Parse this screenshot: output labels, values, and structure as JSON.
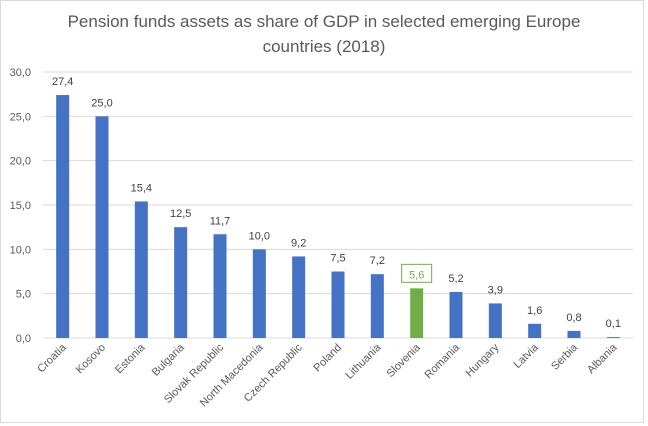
{
  "chart_data": {
    "type": "bar",
    "title": [
      "Pension funds assets as share of GDP in selected emerging Europe",
      "countries (2018)"
    ],
    "categories": [
      "Croatia",
      "Kosovo",
      "Estonia",
      "Bulgaria",
      "Slovak Republic",
      "North Macedonia",
      "Czech Republic",
      "Poland",
      "Lithuania",
      "Slovenia",
      "Romania",
      "Hungary",
      "Latvia",
      "Serbia",
      "Albania"
    ],
    "values": [
      27.4,
      25.0,
      15.4,
      12.5,
      11.7,
      10.0,
      9.2,
      7.5,
      7.2,
      5.6,
      5.2,
      3.9,
      1.6,
      0.8,
      0.1
    ],
    "value_labels": [
      "27,4",
      "25,0",
      "15,4",
      "12,5",
      "11,7",
      "10,0",
      "9,2",
      "7,5",
      "7,2",
      "5,6",
      "5,2",
      "3,9",
      "1,6",
      "0,8",
      "0,1"
    ],
    "highlight": "Slovenia",
    "ylim": [
      0,
      30
    ],
    "yticks": [
      "0,0",
      "5,0",
      "10,0",
      "15,0",
      "20,0",
      "25,0",
      "30,0"
    ],
    "xlabel": "",
    "ylabel": "",
    "grid": true,
    "legend": "none",
    "colors": {
      "bar": "#4472c4",
      "highlight": "#70ad47",
      "grid": "#d9d9d9"
    }
  }
}
